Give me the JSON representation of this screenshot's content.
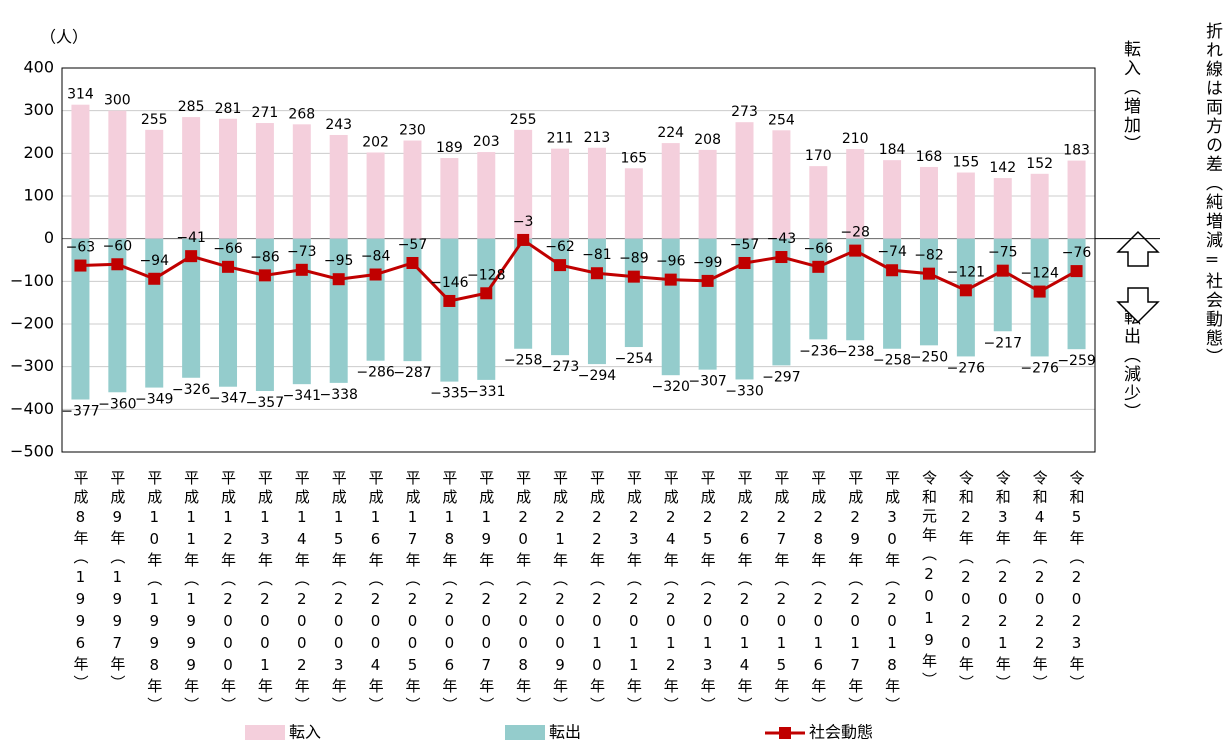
{
  "chart_data": {
    "type": "bar-line",
    "y_unit": "（人）",
    "categories": [
      "平成8年（1996年）",
      "平成9年（1997年）",
      "平成10年（1998年）",
      "平成11年（1999年）",
      "平成12年（2000年）",
      "平成13年（2001年）",
      "平成14年（2002年）",
      "平成15年（2003年）",
      "平成16年（2004年）",
      "平成17年（2005年）",
      "平成18年（2006年）",
      "平成19年（2007年）",
      "平成20年（2008年）",
      "平成21年（2009年）",
      "平成22年（2010年）",
      "平成23年（2011年）",
      "平成24年（2012年）",
      "平成25年（2013年）",
      "平成26年（2014年）",
      "平成27年（2015年）",
      "平成28年（2016年）",
      "平成29年（2017年）",
      "平成30年（2018年）",
      "令和元年（2019年）",
      "令和2年（2020年）",
      "令和3年（2021年）",
      "令和4年（2022年）",
      "令和5年（2023年）"
    ],
    "series": [
      {
        "name": "転入",
        "kind": "bar",
        "color": "#f4cfdc",
        "values": [
          314,
          300,
          255,
          285,
          281,
          271,
          268,
          243,
          202,
          230,
          189,
          203,
          255,
          211,
          213,
          165,
          224,
          208,
          273,
          254,
          170,
          210,
          184,
          168,
          155,
          142,
          152,
          183
        ]
      },
      {
        "name": "転出",
        "kind": "bar",
        "color": "#94cccc",
        "values": [
          -377,
          -360,
          -349,
          -326,
          -347,
          -357,
          -341,
          -338,
          -286,
          -287,
          -335,
          -331,
          -258,
          -273,
          -294,
          -254,
          -320,
          -307,
          -330,
          -297,
          -236,
          -238,
          -258,
          -250,
          -276,
          -217,
          -276,
          -259
        ],
        "value_labels": [
          "−377",
          "−360",
          "−349",
          "−326",
          "−347",
          "−357",
          "−341",
          "−338",
          "−286",
          "−287",
          "−335",
          "−331",
          "−258",
          "−273",
          "−294",
          "−254",
          "−320",
          "−307",
          "−330",
          "−297",
          "−236",
          "−238",
          "−258",
          "−250",
          "−276",
          "−217",
          "−276",
          "−259"
        ]
      },
      {
        "name": "社会動態",
        "kind": "line",
        "color": "#c00000",
        "values": [
          -63,
          -60,
          -94,
          -41,
          -66,
          -86,
          -73,
          -95,
          -84,
          -57,
          -146,
          -128,
          -3,
          -62,
          -81,
          -89,
          -96,
          -99,
          -57,
          -43,
          -66,
          -28,
          -74,
          -82,
          -121,
          -75,
          -124,
          -76
        ],
        "value_labels": [
          "−63",
          "−60",
          "−94",
          "−41",
          "−66",
          "−86",
          "−73",
          "−95",
          "−84",
          "−57",
          "−146",
          "−128",
          "−3",
          "−62",
          "−81",
          "−89",
          "−96",
          "−99",
          "−57",
          "−43",
          "−66",
          "−28",
          "−74",
          "−82",
          "−121",
          "−75",
          "−124",
          "−76"
        ]
      }
    ],
    "ylim": [
      -500,
      400
    ],
    "yticks": [
      {
        "value": -500,
        "label": "−500"
      },
      {
        "value": -400,
        "label": "−400"
      },
      {
        "value": -300,
        "label": "−300"
      },
      {
        "value": -200,
        "label": "−200"
      },
      {
        "value": -100,
        "label": "−100"
      },
      0,
      100,
      200,
      300,
      400
    ],
    "grid": true,
    "annotations": {
      "in": "転入（増加）",
      "out": "転出（減少）",
      "note": "折れ線は両方の差（純増減=社会動態）"
    }
  }
}
